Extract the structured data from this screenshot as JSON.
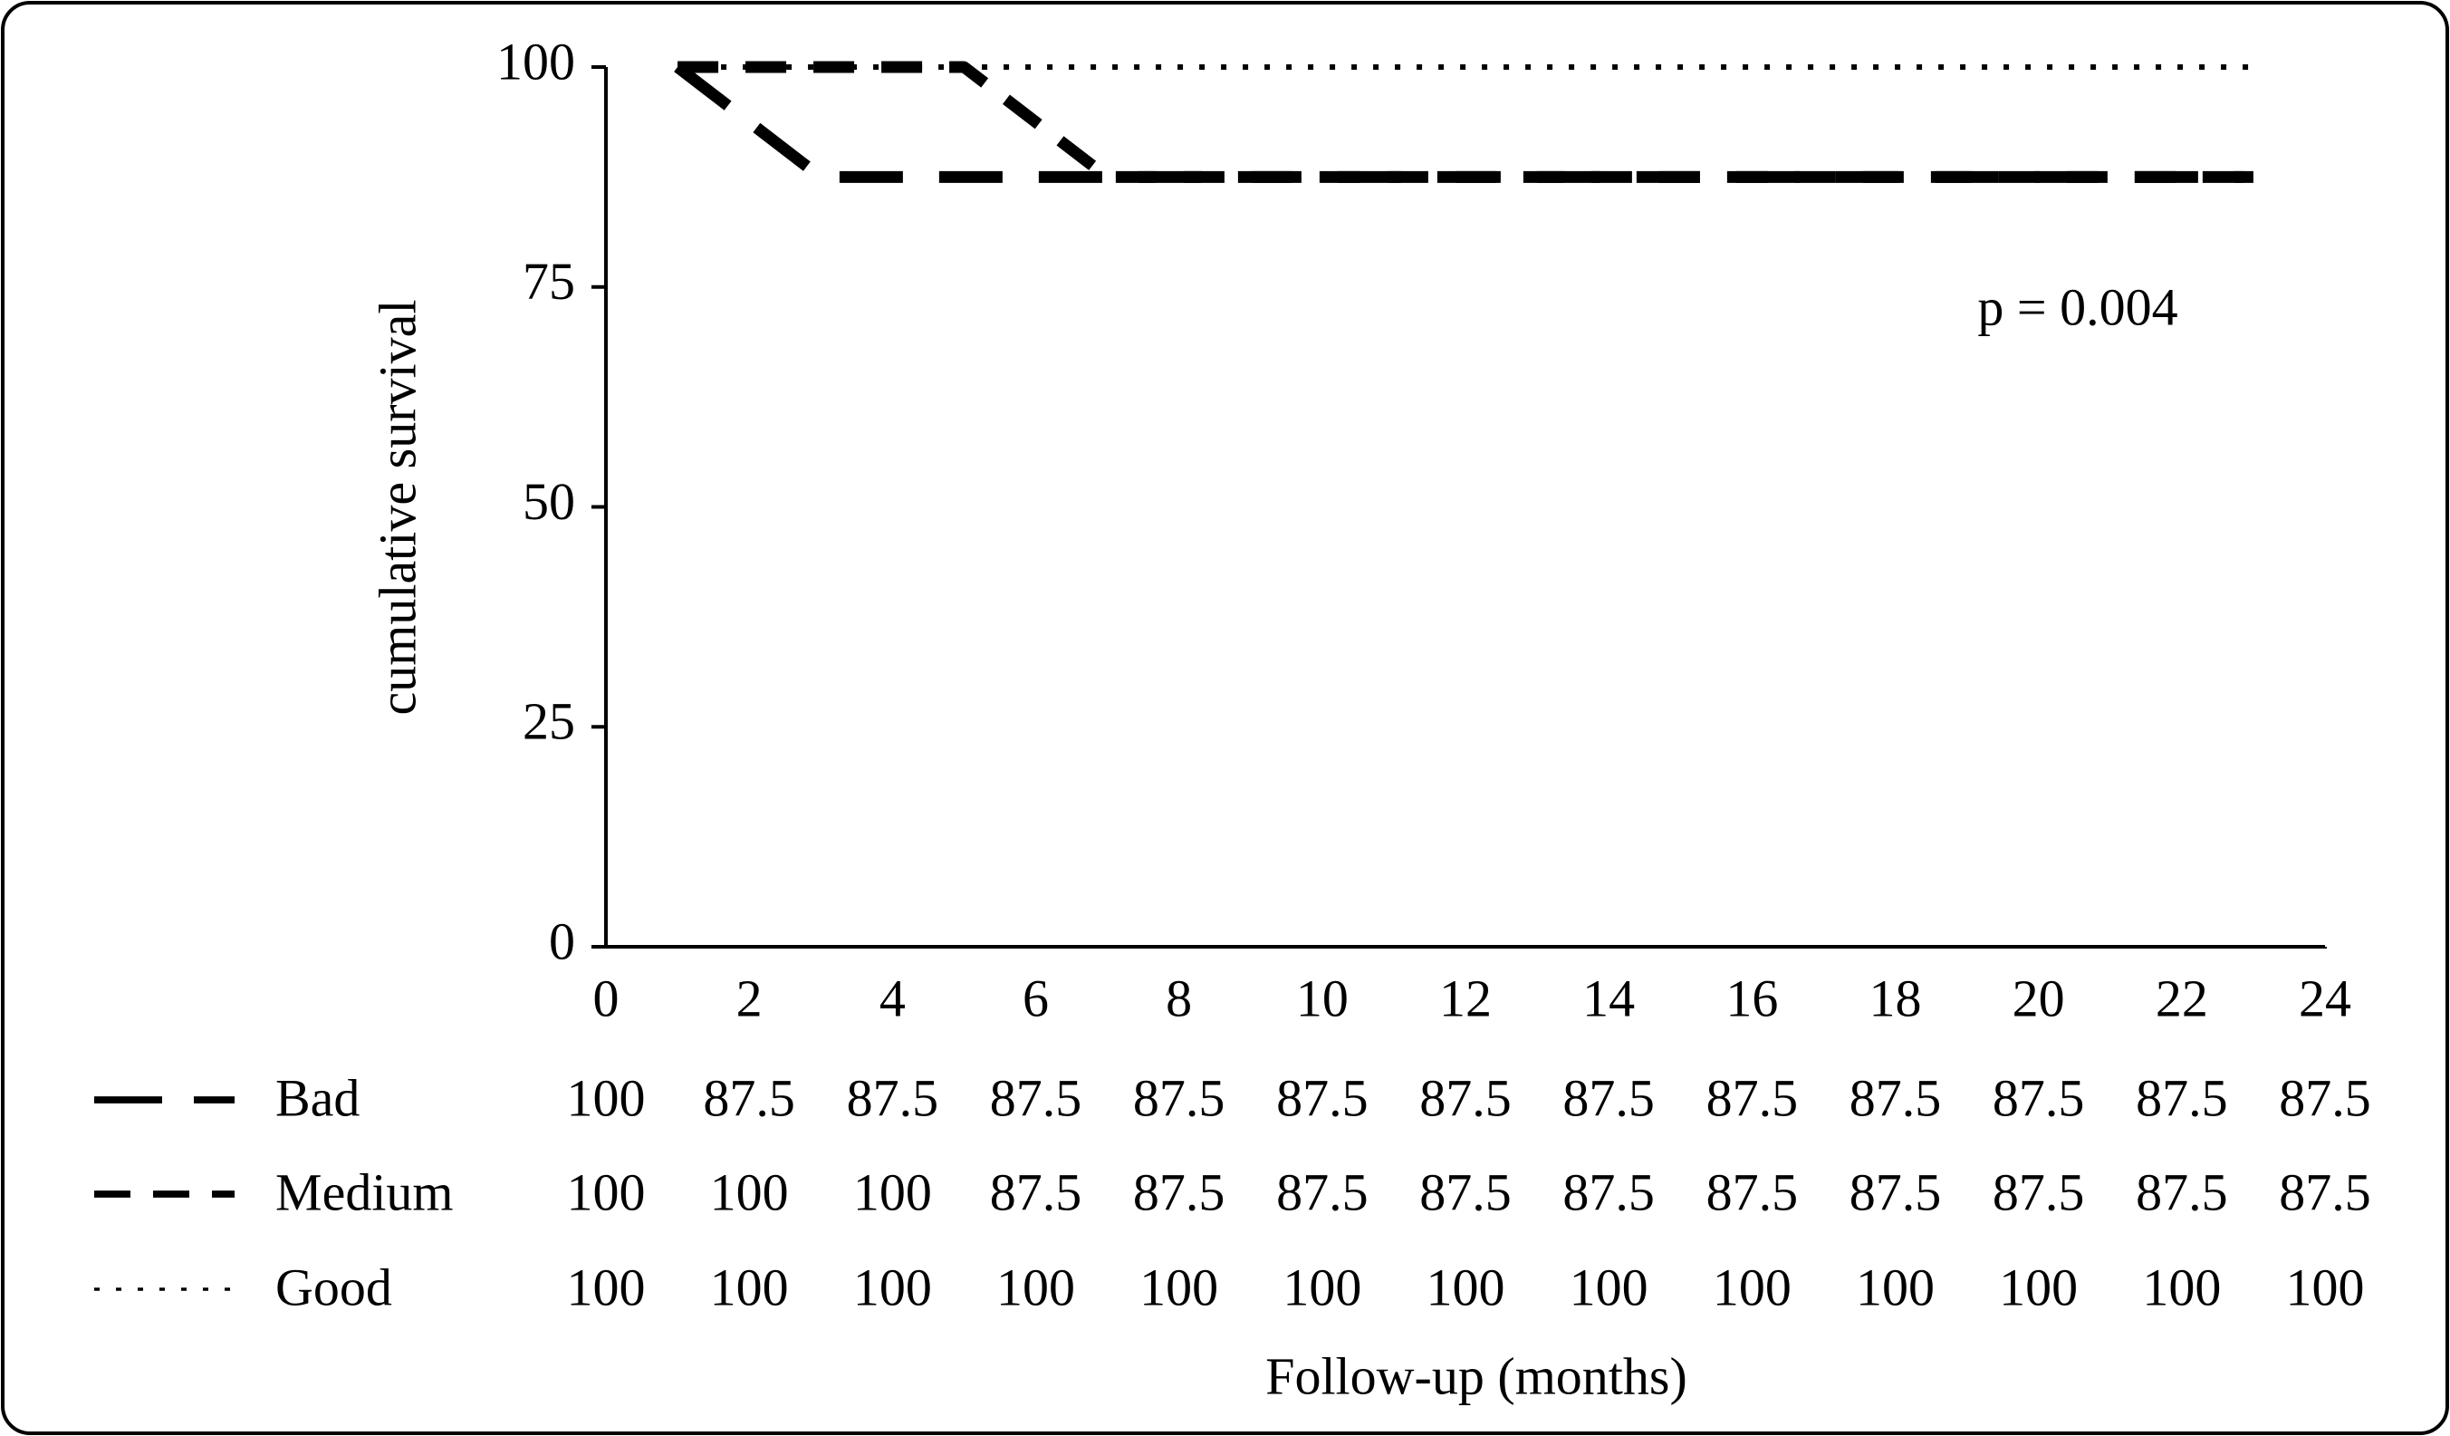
{
  "chart_data": {
    "type": "line",
    "ylabel": "cumulative survival",
    "xlabel": "Follow-up (months)",
    "annotation": "p = 0.004",
    "xlim": [
      0,
      24
    ],
    "xticks": [
      0,
      2,
      4,
      6,
      8,
      10,
      12,
      14,
      16,
      18,
      20,
      22,
      24
    ],
    "ylim": [
      0,
      100
    ],
    "yticks": [
      0,
      25,
      50,
      75,
      100
    ],
    "series": [
      {
        "name": "Bad",
        "color": "#000000",
        "dash": "long",
        "x": [
          1,
          3,
          23
        ],
        "values": [
          100,
          87.5,
          87.5
        ],
        "table_values": [
          100,
          87.5,
          87.5,
          87.5,
          87.5,
          87.5,
          87.5,
          87.5,
          87.5,
          87.5,
          87.5,
          87.5,
          87.5
        ]
      },
      {
        "name": "Medium",
        "color": "#000000",
        "dash": "medium",
        "x": [
          1,
          5,
          7,
          23
        ],
        "values": [
          100,
          100,
          87.5,
          87.5
        ],
        "table_values": [
          100,
          100,
          100,
          87.5,
          87.5,
          87.5,
          87.5,
          87.5,
          87.5,
          87.5,
          87.5,
          87.5,
          87.5
        ]
      },
      {
        "name": "Good",
        "color": "#000000",
        "dash": "dotted",
        "x": [
          1,
          23
        ],
        "values": [
          100,
          100
        ],
        "table_values": [
          100,
          100,
          100,
          100,
          100,
          100,
          100,
          100,
          100,
          100,
          100,
          100,
          100
        ]
      }
    ]
  }
}
